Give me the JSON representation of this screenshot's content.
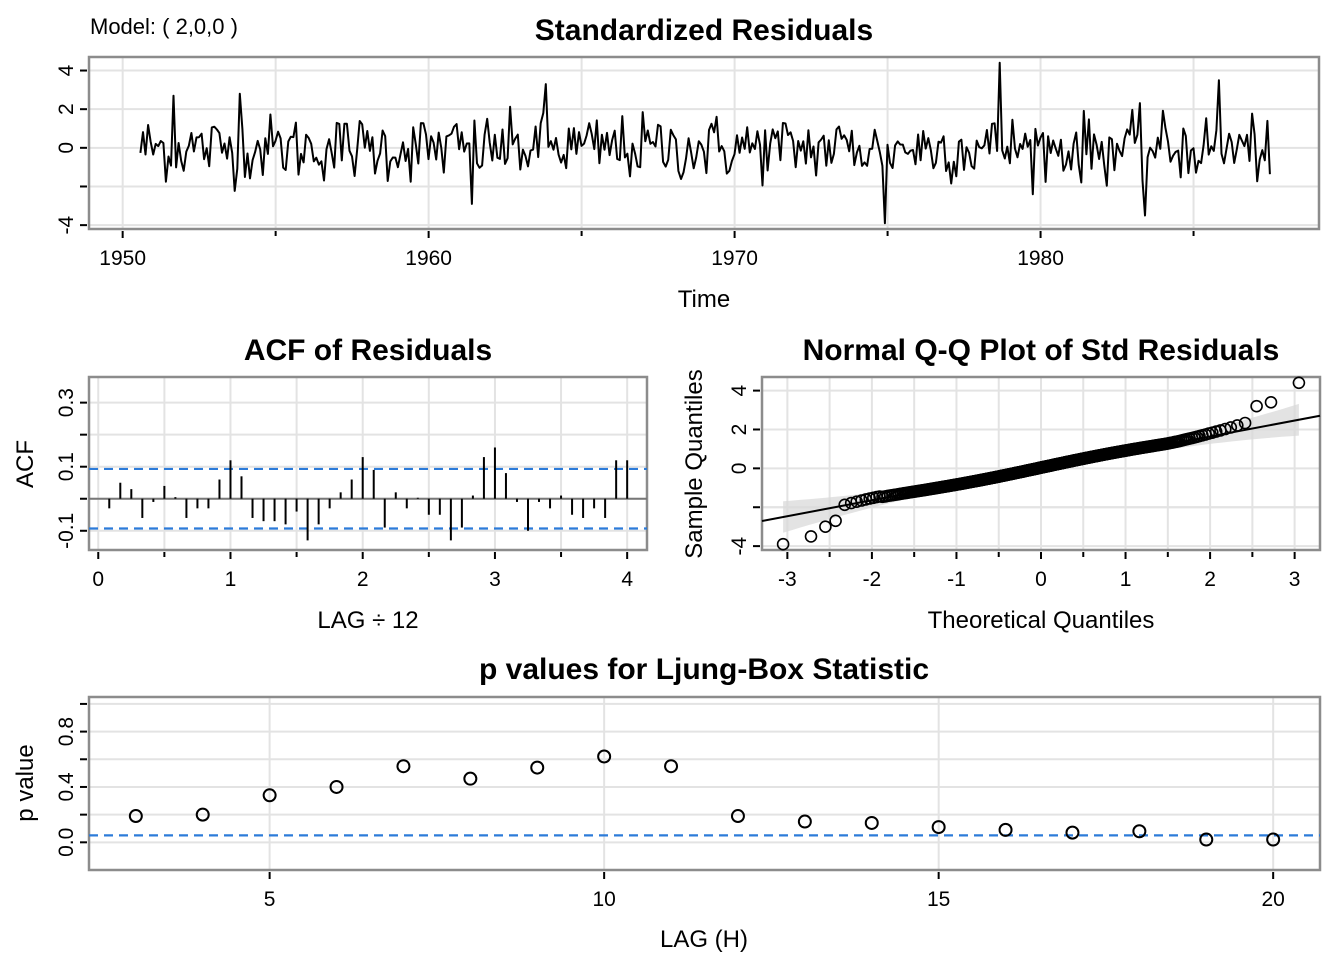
{
  "model_label": "Model: ( 2,0,0 )",
  "colors": {
    "line": "#000000",
    "dashed": "#2C7BD9",
    "band": "#D9D9D9",
    "frame": "#8C8C8C",
    "grid": "#E3E3E3"
  },
  "chart_data": [
    {
      "id": "std-residuals",
      "type": "line",
      "title": "Standardized Residuals",
      "xlabel": "Time",
      "ylabel": "",
      "xlim": [
        1948.9,
        1989.1
      ],
      "ylim": [
        -4.2,
        4.7
      ],
      "x_ticks": [
        1950,
        1960,
        1970,
        1980
      ],
      "x_tick_labels": [
        "1950",
        "1960",
        "1970",
        "1980"
      ],
      "x_minor_ticks": [
        1955,
        1965,
        1975,
        1985
      ],
      "y_ticks": [
        -4,
        -2,
        0,
        2,
        4
      ],
      "y_tick_labels": [
        "-4",
        "",
        "0",
        "2",
        "4"
      ],
      "grid": true,
      "series_start": 1950.58,
      "series_end": 1987.5,
      "frequency": 12,
      "notable_points": [
        {
          "x": 1951.7,
          "y": 2.7
        },
        {
          "x": 1953.8,
          "y": 2.8
        },
        {
          "x": 1961.4,
          "y": -2.9
        },
        {
          "x": 1963.8,
          "y": 3.3
        },
        {
          "x": 1974.9,
          "y": -3.9
        },
        {
          "x": 1978.7,
          "y": 4.4
        },
        {
          "x": 1983.4,
          "y": -3.5
        },
        {
          "x": 1985.8,
          "y": 3.5
        }
      ]
    },
    {
      "id": "acf-residuals",
      "type": "bar",
      "title": "ACF of Residuals",
      "xlabel": "LAG ÷ 12",
      "ylabel": "ACF",
      "xlim": [
        -0.07,
        4.15
      ],
      "ylim": [
        -0.16,
        0.38
      ],
      "x_ticks": [
        0,
        1,
        2,
        3,
        4
      ],
      "x_tick_labels": [
        "0",
        "1",
        "2",
        "3",
        "4"
      ],
      "y_ticks": [
        -0.1,
        0.1,
        0.3
      ],
      "y_tick_labels": [
        "-0.1",
        "0.1",
        "0.3"
      ],
      "y_minor_ticks": [
        0.0,
        0.2
      ],
      "confidence_bound": 0.093,
      "lags": [
        0.0833,
        0.1667,
        0.25,
        0.3333,
        0.4167,
        0.5,
        0.5833,
        0.6667,
        0.75,
        0.8333,
        0.9167,
        1.0,
        1.0833,
        1.1667,
        1.25,
        1.3333,
        1.4167,
        1.5,
        1.5833,
        1.6667,
        1.75,
        1.8333,
        1.9167,
        2.0,
        2.0833,
        2.1667,
        2.25,
        2.3333,
        2.4167,
        2.5,
        2.5833,
        2.6667,
        2.75,
        2.8333,
        2.9167,
        3.0,
        3.0833,
        3.1667,
        3.25,
        3.3333,
        3.4167,
        3.5,
        3.5833,
        3.6667,
        3.75,
        3.8333,
        3.9167,
        4.0
      ],
      "values": [
        -0.03,
        0.05,
        0.03,
        -0.06,
        -0.01,
        0.04,
        0.005,
        -0.06,
        -0.03,
        -0.03,
        0.06,
        0.12,
        0.07,
        -0.06,
        -0.07,
        -0.07,
        -0.08,
        -0.04,
        -0.13,
        -0.08,
        -0.03,
        0.02,
        0.06,
        0.13,
        0.09,
        -0.09,
        0.02,
        -0.03,
        0.003,
        -0.05,
        -0.05,
        -0.13,
        -0.09,
        0.01,
        0.13,
        0.16,
        0.08,
        -0.01,
        -0.1,
        -0.01,
        -0.03,
        0.01,
        -0.05,
        -0.06,
        -0.03,
        -0.06,
        0.12,
        0.12
      ],
      "grid": true
    },
    {
      "id": "qq-plot",
      "type": "scatter",
      "title": "Normal Q-Q Plot of Std Residuals",
      "xlabel": "Theoretical Quantiles",
      "ylabel": "Sample Quantiles",
      "xlim": [
        -3.3,
        3.3
      ],
      "ylim": [
        -4.2,
        4.7
      ],
      "x_ticks": [
        -3,
        -2,
        -1,
        0,
        1,
        2,
        3
      ],
      "x_tick_labels": [
        "-3",
        "-2",
        "-1",
        "0",
        "1",
        "2",
        "3"
      ],
      "y_ticks": [
        -4,
        -2,
        0,
        2,
        4
      ],
      "y_tick_labels": [
        "-4",
        "",
        "0",
        "2",
        "4"
      ],
      "reference_line": {
        "intercept": 0.0,
        "slope": 0.82
      },
      "n_points": 444,
      "tail_points": [
        {
          "x": -3.05,
          "y": -3.9
        },
        {
          "x": -2.72,
          "y": -3.5
        },
        {
          "x": -2.55,
          "y": -3.0
        },
        {
          "x": -2.43,
          "y": -2.7
        },
        {
          "x": 2.55,
          "y": 3.2
        },
        {
          "x": 2.72,
          "y": 3.4
        },
        {
          "x": 3.05,
          "y": 4.4
        }
      ],
      "grid": true
    },
    {
      "id": "ljung-box",
      "type": "scatter",
      "title": "p values for Ljung-Box Statistic",
      "xlabel": "LAG (H)",
      "ylabel": "p value",
      "xlim": [
        2.3,
        20.7
      ],
      "ylim": [
        -0.2,
        1.05
      ],
      "x_ticks": [
        5,
        10,
        15,
        20
      ],
      "x_tick_labels": [
        "5",
        "10",
        "15",
        "20"
      ],
      "y_ticks": [
        0.0,
        0.4,
        0.8
      ],
      "y_tick_labels": [
        "0.0",
        "0.4",
        "0.8"
      ],
      "y_minor_ticks": [
        0.2,
        0.6,
        1.0
      ],
      "significance_line": 0.05,
      "x": [
        3,
        4,
        5,
        6,
        7,
        8,
        9,
        10,
        11,
        12,
        13,
        14,
        15,
        16,
        17,
        18,
        19,
        20
      ],
      "values": [
        0.19,
        0.2,
        0.34,
        0.4,
        0.55,
        0.46,
        0.54,
        0.62,
        0.55,
        0.19,
        0.15,
        0.14,
        0.11,
        0.09,
        0.07,
        0.08,
        0.02,
        0.02
      ],
      "grid": true
    }
  ]
}
